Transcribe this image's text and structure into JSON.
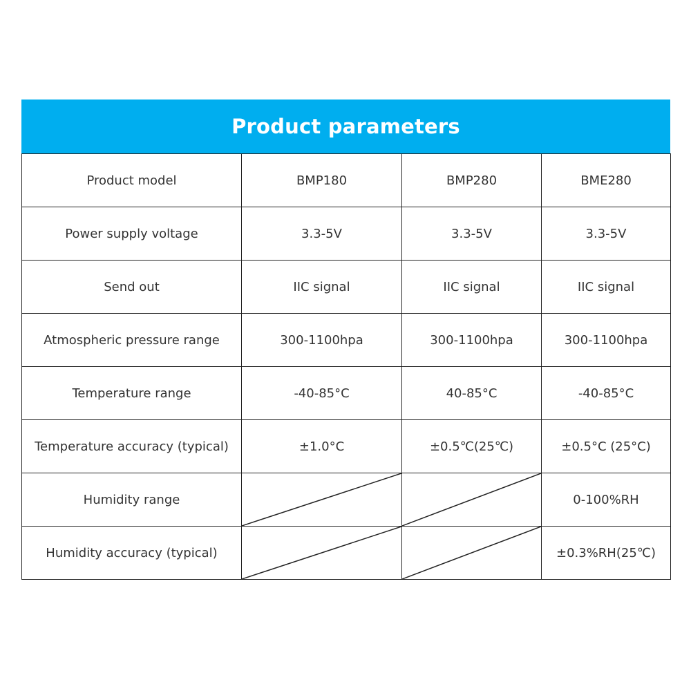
{
  "title": "Product parameters",
  "accent_color": "#00AEEF",
  "rows": [
    {
      "label": "Product model",
      "values": [
        "BMP180",
        "BMP280",
        "BME280"
      ]
    },
    {
      "label": "Power supply voltage",
      "values": [
        "3.3-5V",
        "3.3-5V",
        "3.3-5V"
      ]
    },
    {
      "label": "Send out",
      "values": [
        "IIC signal",
        "IIC signal",
        "IIC signal"
      ]
    },
    {
      "label": "Atmospheric pressure range",
      "values": [
        "300-1100hpa",
        "300-1100hpa",
        "300-1100hpa"
      ]
    },
    {
      "label": "Temperature range",
      "values": [
        "-40-85°C",
        "40-85°C",
        "-40-85°C"
      ]
    },
    {
      "label": "Temperature accuracy (typical)",
      "values": [
        "±1.0°C",
        "±0.5℃(25℃)",
        "±0.5°C (25°C)"
      ]
    },
    {
      "label": "Humidity range",
      "values": [
        null,
        null,
        "0-100%RH"
      ]
    },
    {
      "label": "Humidity accuracy (typical)",
      "values": [
        null,
        null,
        "±0.3%RH(25℃)"
      ]
    }
  ]
}
